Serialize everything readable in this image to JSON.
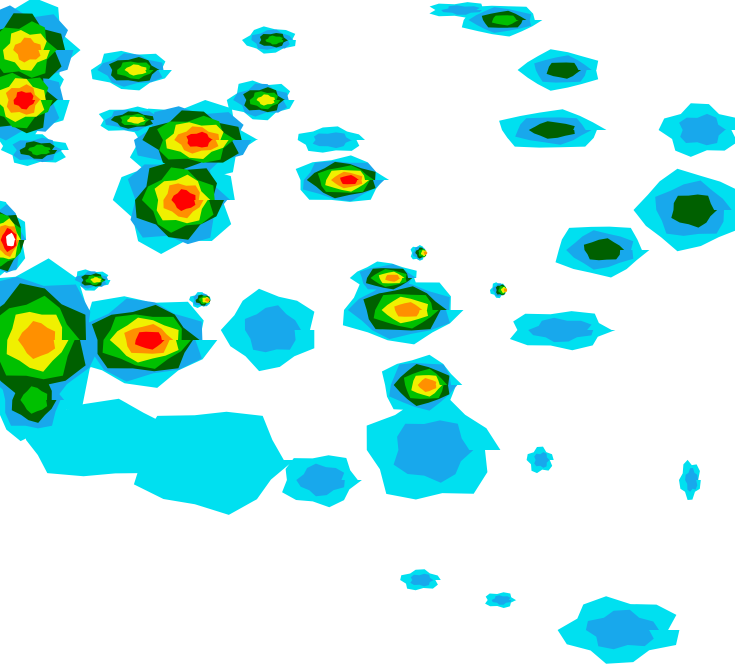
{
  "map": {
    "type": "precipitation-radar",
    "background_color": "#ffffff",
    "intensity_palette": [
      {
        "level": 1,
        "color": "#00e0f0"
      },
      {
        "level": 2,
        "color": "#18a8ec"
      },
      {
        "level": 3,
        "color": "#006000"
      },
      {
        "level": 4,
        "color": "#00c000"
      },
      {
        "level": 5,
        "color": "#f0f000"
      },
      {
        "level": 6,
        "color": "#ff9000"
      },
      {
        "level": 7,
        "color": "#ff0000"
      },
      {
        "level": 8,
        "color": "#ffffff"
      }
    ]
  }
}
